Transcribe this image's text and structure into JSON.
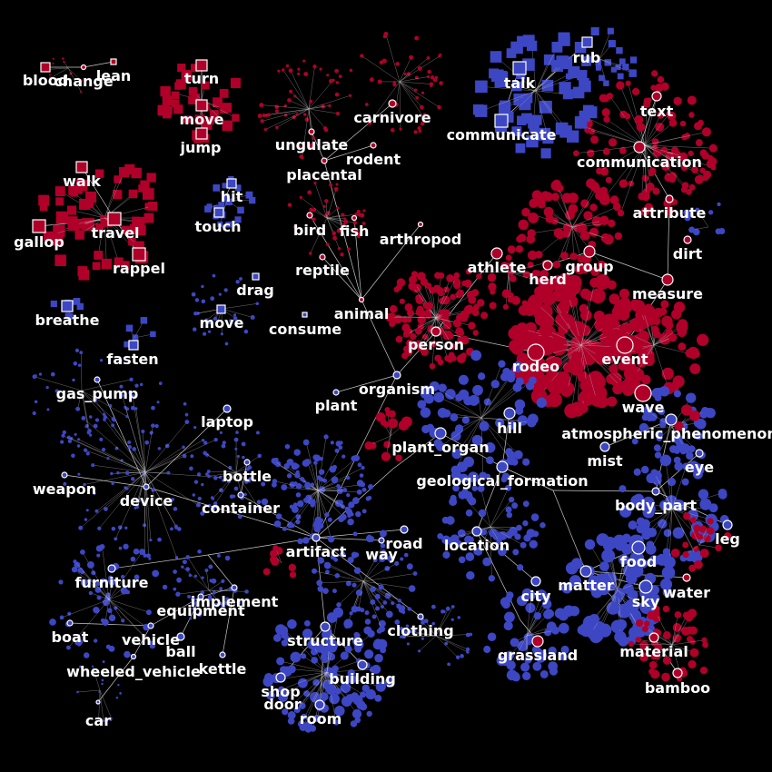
{
  "colors": {
    "background": "#000000",
    "red": "#b0002a",
    "blue": "#3d47c4",
    "edge": "#c8c8c8",
    "label": "#ffffff"
  },
  "labels": {
    "blood": "blood",
    "change": "change",
    "lean": "lean",
    "turn": "turn",
    "move_verb": "move",
    "jump": "jump",
    "walk": "walk",
    "travel": "travel",
    "gallop": "gallop",
    "rappel": "rappel",
    "hit": "hit",
    "touch": "touch",
    "breathe": "breathe",
    "fasten": "fasten",
    "drag": "drag",
    "move_noun": "move",
    "consume": "consume",
    "ungulate": "ungulate",
    "placental": "placental",
    "carnivore": "carnivore",
    "rodent": "rodent",
    "bird": "bird",
    "fish": "fish",
    "arthropod": "arthropod",
    "reptile": "reptile",
    "animal": "animal",
    "person": "person",
    "organism": "organism",
    "plant": "plant",
    "talk": "talk",
    "rub": "rub",
    "communicate": "communicate",
    "text": "text",
    "communication": "communication",
    "attribute": "attribute",
    "dirt": "dirt",
    "athlete": "athlete",
    "group": "group",
    "herd": "herd",
    "measure": "measure",
    "rodeo": "rodeo",
    "event": "event",
    "wave": "wave",
    "gas_pump": "gas_pump",
    "laptop": "laptop",
    "weapon": "weapon",
    "device": "device",
    "bottle": "bottle",
    "container": "container",
    "plant_organ": "plant_organ",
    "hill": "hill",
    "atmospheric_phenomenon": "atmospheric_phenomenon",
    "mist": "mist",
    "eye": "eye",
    "geological_formation": "geological_formation",
    "body_part": "body_part",
    "leg": "leg",
    "food": "food",
    "artifact": "artifact",
    "road": "road",
    "way": "way",
    "location": "location",
    "furniture": "furniture",
    "implement": "implement",
    "equipment": "equipment",
    "matter": "matter",
    "water": "water",
    "city": "city",
    "sky": "sky",
    "boat": "boat",
    "vehicle": "vehicle",
    "ball": "ball",
    "kettle": "kettle",
    "wheeled_vehicle": "wheeled_vehicle",
    "structure": "structure",
    "clothing": "clothing",
    "building": "building",
    "grassland": "grassland",
    "material": "material",
    "shop": "shop",
    "door": "door",
    "room": "room",
    "bamboo": "bamboo",
    "car": "car"
  }
}
